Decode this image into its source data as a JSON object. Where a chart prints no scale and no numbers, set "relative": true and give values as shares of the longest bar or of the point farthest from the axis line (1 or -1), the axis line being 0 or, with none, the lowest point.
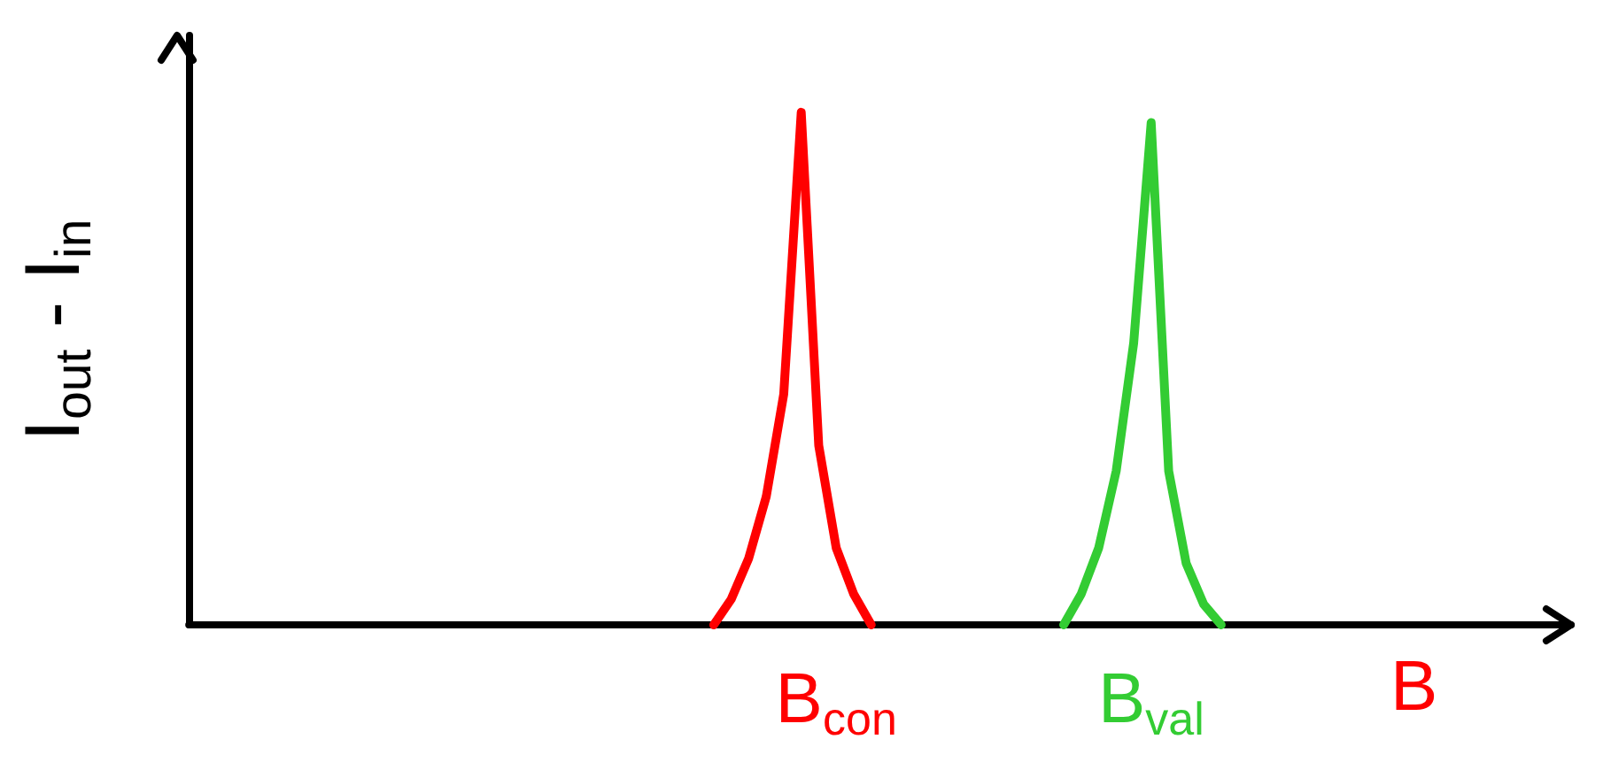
{
  "chart_data": {
    "type": "line",
    "relative": true,
    "xlabel": "B",
    "ylabel": "I$_{out}$ - I$_{in}$",
    "categories": [
      null,
      null,
      null,
      null,
      null,
      null,
      null,
      null,
      null,
      null,
      null,
      null,
      null,
      null,
      null,
      null,
      null,
      null,
      null,
      null,
      null,
      null,
      null,
      null,
      null,
      null,
      null,
      null,
      null,
      null,
      null,
      null,
      null,
      null,
      null,
      null,
      null,
      "B$_{con}$",
      null,
      null,
      null,
      null,
      null,
      null,
      null,
      null,
      null,
      null,
      null,
      null,
      null,
      null,
      null,
      null,
      null,
      "B$_{val}$",
      null,
      null,
      null,
      null,
      null,
      null,
      null,
      null,
      null,
      null,
      null,
      null,
      null,
      null,
      null,
      null,
      null,
      null,
      null,
      null,
      null,
      null,
      null,
      null
    ],
    "series": [
      {
        "color": "#ff0000",
        "values": [
          null,
          null,
          null,
          null,
          null,
          null,
          null,
          null,
          null,
          null,
          null,
          null,
          null,
          null,
          null,
          null,
          null,
          null,
          null,
          null,
          null,
          null,
          null,
          null,
          null,
          null,
          null,
          null,
          null,
          null,
          0,
          0.05,
          0.13,
          0.25,
          0.45,
          1,
          0.35,
          0.15,
          0.06,
          0,
          null,
          null,
          null,
          null,
          null,
          null,
          null,
          null,
          null,
          null,
          null,
          null,
          null,
          null,
          null,
          null,
          null,
          null,
          null,
          null,
          null,
          null,
          null,
          null,
          null,
          null,
          null,
          null,
          null,
          null,
          null,
          null,
          null,
          null,
          null,
          null,
          null,
          null,
          null,
          null
        ]
      },
      {
        "color": "#33cc33",
        "values": [
          null,
          null,
          null,
          null,
          null,
          null,
          null,
          null,
          null,
          null,
          null,
          null,
          null,
          null,
          null,
          null,
          null,
          null,
          null,
          null,
          null,
          null,
          null,
          null,
          null,
          null,
          null,
          null,
          null,
          null,
          null,
          null,
          null,
          null,
          null,
          null,
          null,
          null,
          null,
          null,
          null,
          null,
          null,
          null,
          null,
          null,
          null,
          null,
          null,
          null,
          0,
          0.06,
          0.15,
          0.3,
          0.55,
          0.98,
          0.3,
          0.12,
          0.04,
          0,
          null,
          null,
          null,
          null,
          null,
          null,
          null,
          null,
          null,
          null,
          null,
          null,
          null,
          null,
          null,
          null,
          null,
          null,
          null,
          null
        ]
      }
    ],
    "grid": false,
    "marker": "none",
    "line_style": "solid"
  }
}
